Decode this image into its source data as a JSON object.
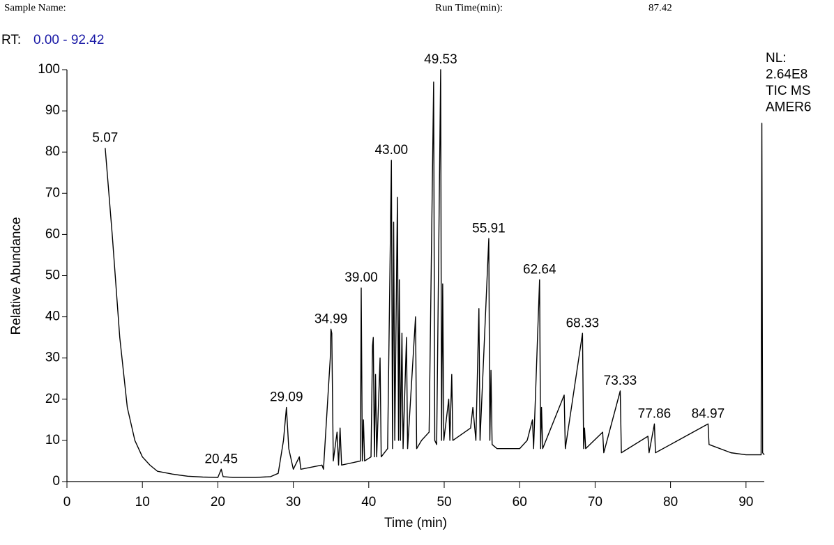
{
  "chart_data": {
    "type": "line",
    "header": {
      "sample_name": "Sample Name:",
      "run_time_label": "Run Time(min):",
      "run_time": 87.42,
      "rt_label": "RT:",
      "rt_range": "0.00 - 92.42"
    },
    "info": [
      "NL:",
      "2.64E8",
      "TIC MS",
      "AMER6"
    ],
    "x_label": "Time (min)",
    "y_label": "Relative Abundance",
    "xlim": [
      0,
      92.42
    ],
    "ylim": [
      0,
      100
    ],
    "xticks": [
      0,
      10,
      20,
      30,
      40,
      50,
      60,
      70,
      80,
      90
    ],
    "yticks": [
      0,
      10,
      20,
      30,
      40,
      50,
      60,
      70,
      80,
      90,
      100
    ],
    "color": "#000000",
    "x": [
      5.07,
      6,
      7,
      8,
      9,
      10,
      11,
      12,
      14,
      16,
      18,
      20,
      20.45,
      20.7,
      22,
      25,
      27,
      28,
      28.7,
      29.09,
      29.4,
      30,
      30.8,
      31,
      33.8,
      34,
      34.9,
      34.99,
      35.1,
      35.3,
      35.8,
      36,
      36.2,
      36.4,
      38.9,
      39.0,
      39.15,
      39.3,
      39.45,
      40.3,
      40.5,
      40.6,
      40.75,
      40.9,
      41.05,
      41.5,
      41.65,
      42.5,
      43.0,
      43.15,
      43.3,
      43.45,
      43.8,
      43.95,
      44.05,
      44.2,
      44.4,
      44.55,
      45.0,
      45.15,
      46.2,
      46.35,
      47,
      48,
      48.6,
      48.75,
      49.0,
      49.53,
      49.65,
      49.8,
      49.95,
      50.6,
      50.75,
      51.0,
      51.15,
      53.5,
      53.8,
      54.2,
      54.6,
      54.75,
      55.91,
      56.05,
      56.2,
      56.35,
      57,
      60,
      61,
      61.7,
      61.85,
      62.64,
      62.78,
      62.9,
      63.05,
      65.9,
      66.05,
      68.33,
      68.48,
      68.6,
      68.75,
      71.0,
      71.15,
      73.33,
      73.48,
      77.0,
      77.15,
      77.86,
      78,
      80,
      84.97,
      85.1,
      88,
      90,
      92.0,
      92.1,
      92.2,
      92.42
    ],
    "values": [
      81,
      60,
      35,
      18,
      10,
      6,
      4,
      2.5,
      1.8,
      1.3,
      1.1,
      1.0,
      3,
      1.2,
      1.0,
      1.0,
      1.2,
      2,
      10,
      18,
      8,
      3,
      6,
      3,
      4,
      3,
      30,
      37,
      36,
      5,
      12,
      4,
      13,
      4,
      5,
      47,
      5,
      15,
      5,
      6,
      33,
      35,
      6,
      26,
      6,
      30,
      6,
      8,
      78,
      8,
      63,
      10,
      69,
      10,
      49,
      10,
      36,
      8,
      35,
      8,
      40,
      8,
      10,
      12,
      97,
      10,
      9,
      100,
      10,
      48,
      10,
      20,
      10,
      26,
      10,
      13,
      18,
      10,
      42,
      10,
      59,
      10,
      27,
      9,
      8,
      8,
      10,
      15,
      8,
      49,
      8,
      18,
      8,
      21,
      8,
      36,
      8,
      13,
      8,
      12,
      7,
      22,
      7,
      11,
      7,
      14,
      7,
      9,
      14,
      9,
      7,
      6.5,
      6.5,
      87,
      7,
      6.5
    ],
    "annotations": [
      {
        "x": 5.07,
        "y": 81,
        "label": "5.07"
      },
      {
        "x": 20.45,
        "y": 3,
        "label": "20.45"
      },
      {
        "x": 29.09,
        "y": 18,
        "label": "29.09"
      },
      {
        "x": 34.99,
        "y": 37,
        "label": "34.99"
      },
      {
        "x": 39.0,
        "y": 47,
        "label": "39.00"
      },
      {
        "x": 43.0,
        "y": 78,
        "label": "43.00"
      },
      {
        "x": 49.53,
        "y": 100,
        "label": "49.53"
      },
      {
        "x": 55.91,
        "y": 59,
        "label": "55.91"
      },
      {
        "x": 62.64,
        "y": 49,
        "label": "62.64"
      },
      {
        "x": 68.33,
        "y": 36,
        "label": "68.33"
      },
      {
        "x": 73.33,
        "y": 22,
        "label": "73.33"
      },
      {
        "x": 77.86,
        "y": 14,
        "label": "77.86"
      },
      {
        "x": 84.97,
        "y": 14,
        "label": "84.97"
      }
    ]
  }
}
